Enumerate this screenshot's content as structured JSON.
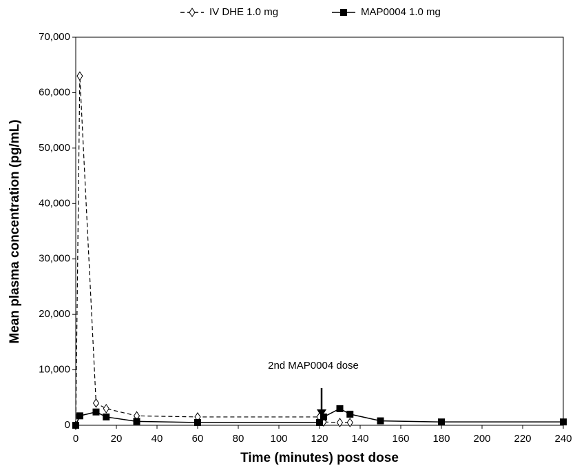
{
  "chart_data": {
    "type": "line",
    "xlabel": "Time (minutes) post dose",
    "ylabel": "Mean plasma concentration (pg/mL)",
    "xlim": [
      0,
      240
    ],
    "ylim": [
      0,
      70000
    ],
    "xticks": [
      0,
      20,
      40,
      60,
      80,
      100,
      120,
      140,
      160,
      180,
      200,
      220,
      240
    ],
    "yticks": [
      0,
      {
        "value": 10000,
        "label": "10,000"
      },
      {
        "value": 20000,
        "label": "20,000"
      },
      {
        "value": 30000,
        "label": "30,000"
      },
      {
        "value": 40000,
        "label": "40,000"
      },
      {
        "value": 50000,
        "label": "50,000"
      },
      {
        "value": 60000,
        "label": "60,000"
      },
      {
        "value": 70000,
        "label": "70,000"
      }
    ],
    "legend": "top",
    "annotations": [
      "2nd MAP0004 dose"
    ],
    "series": [
      {
        "name": "IV DHE 1.0 mg",
        "color": "#000000",
        "line": "dashed",
        "marker": "diamond",
        "x": [
          0,
          2,
          10,
          15,
          30,
          60,
          120,
          122,
          130,
          135
        ],
        "values": [
          0,
          63000,
          4000,
          3000,
          1700,
          1500,
          1500,
          600,
          500,
          500
        ]
      },
      {
        "name": "MAP0004 1.0 mg",
        "color": "#000000",
        "line": "solid",
        "marker": "square",
        "x": [
          0,
          2,
          10,
          15,
          30,
          60,
          120,
          122,
          130,
          135,
          150,
          180,
          240
        ],
        "values": [
          0,
          1700,
          2400,
          1500,
          700,
          500,
          500,
          1500,
          3000,
          2000,
          800,
          600,
          600
        ]
      }
    ]
  }
}
